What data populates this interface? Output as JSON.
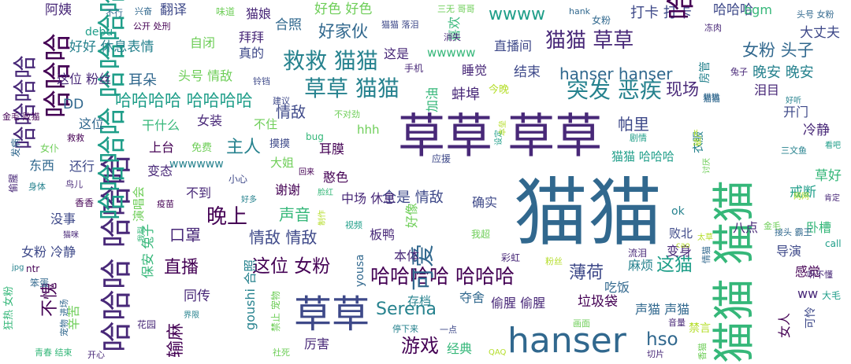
{
  "colors": {
    "background": "#ffffff",
    "palette": [
      "#440154",
      "#482878",
      "#3e4989",
      "#31688e",
      "#26828e",
      "#1f9e89",
      "#35b779",
      "#6ece58",
      "#b5de2b",
      "#fde725"
    ]
  },
  "words": [
    {
      "text": "猫猫",
      "c": 3
    },
    {
      "text": "猫猫 猫猫",
      "c": 6
    },
    {
      "text": "草草 草草",
      "c": 1
    },
    {
      "text": "hanser",
      "c": 3
    },
    {
      "text": "草草",
      "c": 2
    },
    {
      "text": "哈哈哈 哈哈哈",
      "c": 1
    },
    {
      "text": "哈哈哈哈 哈哈哈哈",
      "c": 5
    },
    {
      "text": "哈哈哈哈 哈哈哈",
      "c": 0
    },
    {
      "text": "救救 猫猫",
      "c": 4
    },
    {
      "text": "草草 猫猫",
      "c": 4
    },
    {
      "text": "猫猫 草草",
      "c": 1
    },
    {
      "text": "可爱",
      "c": 3
    },
    {
      "text": "哈哈哈哈",
      "c": 1
    },
    {
      "text": "突发 恶疾",
      "c": 4
    },
    {
      "text": "哈哈哈哈 哈哈哈哈",
      "c": 5
    },
    {
      "text": "游戏",
      "c": 0
    },
    {
      "text": "这位 女粉",
      "c": 0
    },
    {
      "text": "晚上",
      "c": 0
    },
    {
      "text": "情敌 情敌",
      "c": 2
    },
    {
      "text": "主人",
      "c": 4
    },
    {
      "text": "声音",
      "c": 6
    },
    {
      "text": "Serena",
      "c": 4
    },
    {
      "text": "hso",
      "c": 3
    },
    {
      "text": "这猫",
      "c": 5
    },
    {
      "text": "wwww",
      "c": 5
    },
    {
      "text": "好家伙",
      "c": 3
    },
    {
      "text": "女粉 头子",
      "c": 3
    },
    {
      "text": "hanser hanser",
      "c": 3
    },
    {
      "text": "现场",
      "c": 1
    },
    {
      "text": "薄荷",
      "c": 2
    },
    {
      "text": "输麻",
      "c": 0
    },
    {
      "text": "直播",
      "c": 0
    },
    {
      "text": "口罩",
      "c": 1
    },
    {
      "text": "不愧",
      "c": 0
    },
    {
      "text": "帕里",
      "c": 2
    },
    {
      "text": "晚安 晚安",
      "c": 4
    },
    {
      "text": "情敌",
      "c": 2
    },
    {
      "text": "全是 情敌",
      "c": 2
    },
    {
      "text": "蚌埠",
      "c": 1
    },
    {
      "text": "打卡 打卡",
      "c": 2
    },
    {
      "text": "阿姨",
      "c": 1
    },
    {
      "text": "翻译",
      "c": 2
    },
    {
      "text": "好色 好色",
      "c": 7
    },
    {
      "text": "哈哈哈",
      "c": 0
    },
    {
      "text": "猫娘",
      "c": 1
    },
    {
      "text": "合照",
      "c": 3
    },
    {
      "text": "直播间",
      "c": 2
    },
    {
      "text": "好好 休息表情",
      "c": 4
    },
    {
      "text": "自闭",
      "c": 7
    },
    {
      "text": "拜拜",
      "c": 1
    },
    {
      "text": "真的",
      "c": 2
    },
    {
      "text": "这是",
      "c": 1
    },
    {
      "text": "wwwww",
      "c": 6
    },
    {
      "text": "睡觉",
      "c": 1
    },
    {
      "text": "结束",
      "c": 2
    },
    {
      "text": "耳朵",
      "c": 3
    },
    {
      "text": "头号 情敌",
      "c": 7
    },
    {
      "text": "这位 粉丝",
      "c": 1
    },
    {
      "text": "DD",
      "c": 3
    },
    {
      "text": "这位",
      "c": 3
    },
    {
      "text": "女装",
      "c": 1
    },
    {
      "text": "干什么",
      "c": 6
    },
    {
      "text": "不住",
      "c": 7
    },
    {
      "text": "hhh",
      "c": 7
    },
    {
      "text": "大丈夫",
      "c": 2
    },
    {
      "text": "泪目",
      "c": 1
    },
    {
      "text": "开门",
      "c": 2
    },
    {
      "text": "冷静",
      "c": 1
    },
    {
      "text": "草好",
      "c": 6
    },
    {
      "text": "戒断",
      "c": 5
    },
    {
      "text": "卧槽",
      "c": 6
    },
    {
      "text": "导演",
      "c": 2
    },
    {
      "text": "感觉",
      "c": 0
    },
    {
      "text": "女人",
      "c": 0
    },
    {
      "text": "上台",
      "c": 0
    },
    {
      "text": "东西",
      "c": 3
    },
    {
      "text": "还行",
      "c": 2
    },
    {
      "text": "变态",
      "c": 1
    },
    {
      "text": "wwwwww",
      "c": 4
    },
    {
      "text": "大姐",
      "c": 7
    },
    {
      "text": "耳膜",
      "c": 0
    },
    {
      "text": "憨色",
      "c": 0
    },
    {
      "text": "谢谢",
      "c": 0
    },
    {
      "text": "中场 休息",
      "c": 1
    },
    {
      "text": "演唱会",
      "c": 7
    },
    {
      "text": "不到",
      "c": 1
    },
    {
      "text": "没事",
      "c": 2
    },
    {
      "text": "女粉 冷静",
      "c": 2
    },
    {
      "text": "保安 兔子",
      "c": 6
    },
    {
      "text": "板鸭",
      "c": 1
    },
    {
      "text": "本体",
      "c": 1
    },
    {
      "text": "确实",
      "c": 2
    },
    {
      "text": "好像",
      "c": 7
    },
    {
      "text": "同传",
      "c": 1
    },
    {
      "text": "辛苦",
      "c": 7
    },
    {
      "text": "厉害",
      "c": 1
    },
    {
      "text": "存档",
      "c": 4
    },
    {
      "text": "经典",
      "c": 6
    },
    {
      "text": "夺舍",
      "c": 3
    },
    {
      "text": "偷腥 偷腥",
      "c": 1
    },
    {
      "text": "垃圾袋",
      "c": 0
    },
    {
      "text": "声猫 声猫",
      "c": 3
    },
    {
      "text": "吃饭",
      "c": 3
    },
    {
      "text": "麻烦",
      "c": 4
    },
    {
      "text": "猫猫 哈哈哈",
      "c": 5
    },
    {
      "text": "剧情",
      "c": 5
    },
    {
      "text": "衣服",
      "c": 4
    },
    {
      "text": "变身",
      "c": 1
    },
    {
      "text": "败北",
      "c": 2
    },
    {
      "text": "八点",
      "c": 1
    },
    {
      "text": "ok",
      "c": 4
    },
    {
      "text": "ww",
      "c": 1
    },
    {
      "text": "哈哈哈",
      "c": 2
    },
    {
      "text": "bgm",
      "c": 6
    },
    {
      "text": "喜欢",
      "c": 6
    },
    {
      "text": "加油",
      "c": 6
    },
    {
      "text": "设定",
      "c": 5
    },
    {
      "text": "手机",
      "c": 1
    },
    {
      "text": "今晚",
      "c": 8
    },
    {
      "text": "bug",
      "c": 6
    },
    {
      "text": "免费",
      "c": 7
    },
    {
      "text": "摸摸",
      "c": 2
    },
    {
      "text": "小心",
      "c": 2
    },
    {
      "text": "好多",
      "c": 4
    },
    {
      "text": "脸红",
      "c": 6
    },
    {
      "text": "制作",
      "c": 8
    },
    {
      "text": "视频",
      "c": 5
    },
    {
      "text": "我超",
      "c": 7
    },
    {
      "text": "goushi 合照",
      "c": 4
    },
    {
      "text": "禁止 宠物",
      "c": 7
    },
    {
      "text": "yousa",
      "c": 3
    },
    {
      "text": "彩虹",
      "c": 1
    },
    {
      "text": "粉丝",
      "c": 8
    },
    {
      "text": "流泪",
      "c": 1
    },
    {
      "text": "音量",
      "c": 1
    },
    {
      "text": "画面",
      "c": 7
    },
    {
      "text": "禁言",
      "c": 8
    },
    {
      "text": "可怜",
      "c": 2
    },
    {
      "text": "大毛",
      "c": 5
    },
    {
      "text": "听不懂",
      "c": 1
    },
    {
      "text": "call",
      "c": 5
    },
    {
      "text": "接头 霸王",
      "c": 3
    },
    {
      "text": "金毛",
      "c": 7
    },
    {
      "text": "太草",
      "c": 8
    },
    {
      "text": "cao",
      "c": 8
    },
    {
      "text": "情猫",
      "c": 3
    },
    {
      "text": "肯定",
      "c": 1
    },
    {
      "text": "三文鱼",
      "c": 4
    },
    {
      "text": "看吧",
      "c": 5
    },
    {
      "text": "好听",
      "c": 4
    },
    {
      "text": "网网",
      "c": 8
    },
    {
      "text": "讨厌",
      "c": 7
    },
    {
      "text": "破产",
      "c": 8
    },
    {
      "text": "猫猫",
      "c": 3
    },
    {
      "text": "兔子",
      "c": 1
    },
    {
      "text": "房管",
      "c": 4
    },
    {
      "text": "冻肉",
      "c": 1
    },
    {
      "text": "头号 女粉",
      "c": 3
    },
    {
      "text": "女粉",
      "c": 3
    },
    {
      "text": "哈哈哈",
      "c": 0
    },
    {
      "text": "hank",
      "c": 3
    },
    {
      "text": "三无 哥哥",
      "c": 7
    },
    {
      "text": "消失",
      "c": 1
    },
    {
      "text": "猫猫 落泪",
      "c": 2
    },
    {
      "text": "味道",
      "c": 7
    },
    {
      "text": "debu",
      "c": 5
    },
    {
      "text": "兴奋",
      "c": 3
    },
    {
      "text": "不行",
      "c": 3
    },
    {
      "text": "公开 处刑",
      "c": 0
    },
    {
      "text": "铃铛",
      "c": 2
    },
    {
      "text": "建议",
      "c": 2
    },
    {
      "text": "不对劲",
      "c": 7
    },
    {
      "text": "应援",
      "c": 2
    },
    {
      "text": "本垒",
      "c": 8
    },
    {
      "text": "回来",
      "c": 0
    },
    {
      "text": "金毛 败猫",
      "c": 0
    },
    {
      "text": "偷腥",
      "c": 1
    },
    {
      "text": "发病",
      "c": 3
    },
    {
      "text": "女仆",
      "c": 7
    },
    {
      "text": "救救",
      "c": 0
    },
    {
      "text": "身体",
      "c": 4
    },
    {
      "text": "鸟儿",
      "c": 1
    },
    {
      "text": "香香",
      "c": 0
    },
    {
      "text": "疫苗",
      "c": 0
    },
    {
      "text": "猫咪",
      "c": 1
    },
    {
      "text": "狂热 女粉",
      "c": 6
    },
    {
      "text": "笨蛋",
      "c": 3
    },
    {
      "text": "jpg",
      "c": 4
    },
    {
      "text": "ntr",
      "c": 0
    },
    {
      "text": "宠物 进场",
      "c": 3
    },
    {
      "text": "花园",
      "c": 1
    },
    {
      "text": "界限",
      "c": 4
    },
    {
      "text": "开心",
      "c": 1
    },
    {
      "text": "青春 结束",
      "c": 6
    },
    {
      "text": "社死",
      "c": 7
    },
    {
      "text": "停下来",
      "c": 4
    },
    {
      "text": "一点",
      "c": 2
    },
    {
      "text": "QAQ",
      "c": 8
    },
    {
      "text": "切片",
      "c": 1
    },
    {
      "text": "香猫",
      "c": 7
    },
    {
      "text": "猫猫",
      "c": 3
    },
    {
      "text": "我裂",
      "c": 6
    }
  ]
}
